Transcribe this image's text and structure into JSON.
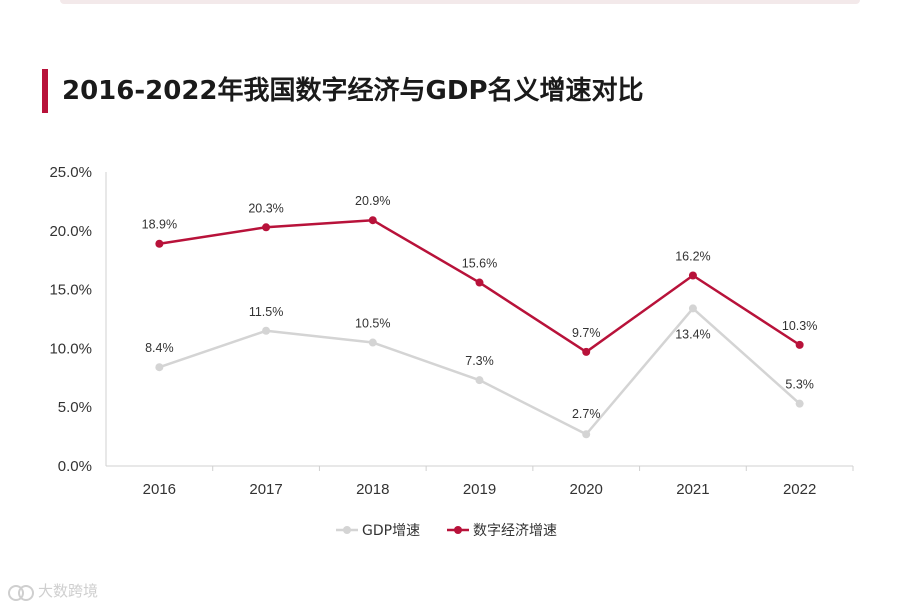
{
  "page": {
    "title": "2016-2022年我国数字经济与GDP名义增速对比"
  },
  "watermark": {
    "text": "大数跨境"
  },
  "colors": {
    "accent": "#b8123a",
    "gdp": "#d4d4d4",
    "digital": "#b8123a"
  },
  "chart_data": {
    "type": "line",
    "title": "2016-2022年我国数字经济与GDP名义增速对比",
    "categories": [
      "2016",
      "2017",
      "2018",
      "2019",
      "2020",
      "2021",
      "2022"
    ],
    "y_ticks": [
      "0.0%",
      "5.0%",
      "10.0%",
      "15.0%",
      "20.0%",
      "25.0%"
    ],
    "ylim": [
      0,
      25
    ],
    "series": [
      {
        "name": "GDP增速",
        "values": [
          8.4,
          11.5,
          10.5,
          7.3,
          2.7,
          13.4,
          5.3
        ],
        "labels": [
          "8.4%",
          "11.5%",
          "10.5%",
          "7.3%",
          "2.7%",
          "13.4%",
          "5.3%"
        ]
      },
      {
        "name": "数字经济增速",
        "values": [
          18.9,
          20.3,
          20.9,
          15.6,
          9.7,
          16.2,
          10.3
        ],
        "labels": [
          "18.9%",
          "20.3%",
          "20.9%",
          "15.6%",
          "9.7%",
          "16.2%",
          "10.3%"
        ]
      }
    ],
    "legend_position": "bottom-center",
    "grid": false
  }
}
